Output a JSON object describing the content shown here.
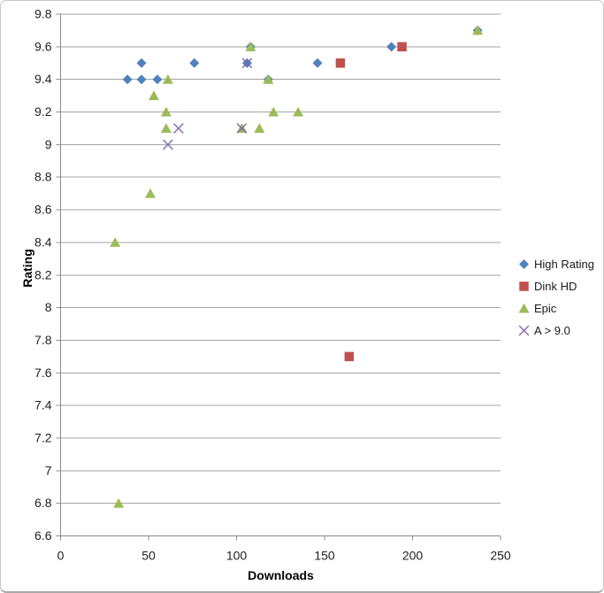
{
  "chart_data": {
    "type": "scatter",
    "title": "",
    "xlabel": "Downloads",
    "ylabel": "Rating",
    "xlim": [
      0,
      250
    ],
    "ylim": [
      6.6,
      9.8
    ],
    "xticks": [
      0,
      50,
      100,
      150,
      200,
      250
    ],
    "yticks": [
      6.6,
      6.8,
      7,
      7.2,
      7.4,
      7.6,
      7.8,
      8,
      8.2,
      8.4,
      8.6,
      8.8,
      9,
      9.2,
      9.4,
      9.6,
      9.8
    ],
    "grid": "horizontal-major-on",
    "legend_position": "right",
    "series": [
      {
        "name": "High Rating",
        "marker": "diamond",
        "color": "#4F81BD",
        "points": [
          [
            38,
            9.4
          ],
          [
            46,
            9.5
          ],
          [
            46,
            9.4
          ],
          [
            55,
            9.4
          ],
          [
            76,
            9.5
          ],
          [
            106,
            9.5
          ],
          [
            108,
            9.6
          ],
          [
            118,
            9.4
          ],
          [
            146,
            9.5
          ],
          [
            188,
            9.6
          ],
          [
            237,
            9.7
          ]
        ]
      },
      {
        "name": "Dink HD",
        "marker": "square",
        "color": "#C0504D",
        "points": [
          [
            159,
            9.5
          ],
          [
            164,
            7.7
          ],
          [
            194,
            9.6
          ]
        ]
      },
      {
        "name": "Epic",
        "marker": "triangle",
        "color": "#9BBB59",
        "points": [
          [
            31,
            8.4
          ],
          [
            33,
            6.8
          ],
          [
            51,
            8.7
          ],
          [
            53,
            9.3
          ],
          [
            60,
            9.2
          ],
          [
            60,
            9.1
          ],
          [
            61,
            9.4
          ],
          [
            103,
            9.1
          ],
          [
            108,
            9.6
          ],
          [
            113,
            9.1
          ],
          [
            118,
            9.4
          ],
          [
            121,
            9.2
          ],
          [
            135,
            9.2
          ],
          [
            237,
            9.7
          ]
        ]
      },
      {
        "name": "A > 9.0",
        "marker": "x",
        "color": "#8269A9",
        "points": [
          [
            61,
            9.0
          ],
          [
            67,
            9.1
          ],
          [
            103,
            9.1
          ],
          [
            106,
            9.5
          ]
        ]
      }
    ],
    "style": {
      "gridline_color": "#A3A3A3",
      "axis_color": "#8C8C8C",
      "tick_label_color": "#202020"
    }
  }
}
